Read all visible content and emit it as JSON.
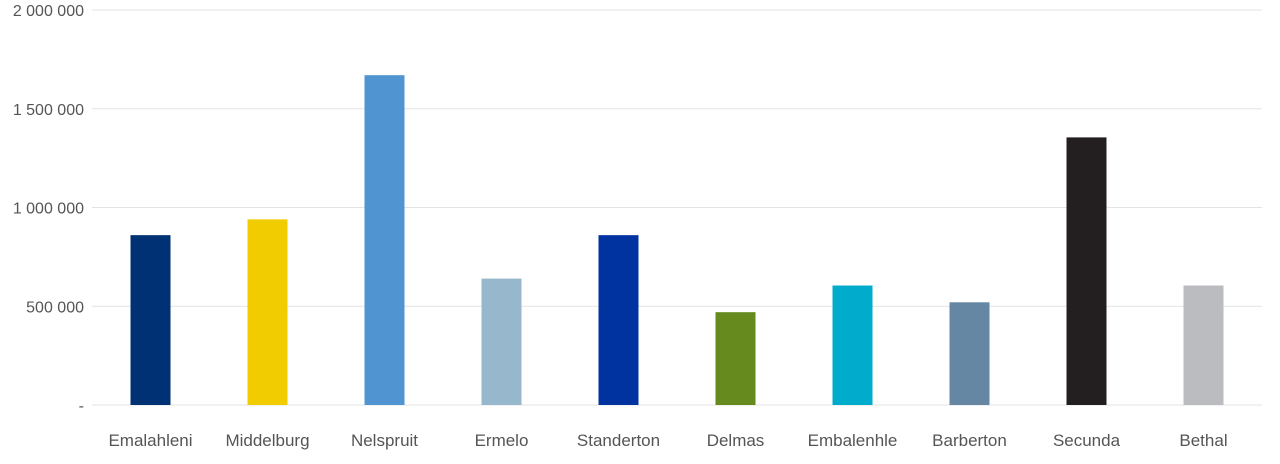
{
  "chart_data": {
    "type": "bar",
    "title": "",
    "xlabel": "",
    "ylabel": "",
    "categories": [
      "Emalahleni",
      "Middelburg",
      "Nelspruit",
      "Ermelo",
      "Standerton",
      "Delmas",
      "Embalenhle",
      "Barberton",
      "Secunda",
      "Bethal"
    ],
    "values": [
      860000,
      940000,
      1670000,
      640000,
      860000,
      470000,
      605000,
      520000,
      1355000,
      605000
    ],
    "colors": [
      "#003174",
      "#f0cc00",
      "#5095d2",
      "#97b8cc",
      "#0033a0",
      "#668a1e",
      "#00abcc",
      "#6687a3",
      "#231f20",
      "#bbbcc0"
    ],
    "ylim": [
      0,
      2000000
    ],
    "yticks": [
      {
        "value": 0,
        "label": "-"
      },
      {
        "value": 500000,
        "label": "500 000"
      },
      {
        "value": 1000000,
        "label": "1 000 000"
      },
      {
        "value": 1500000,
        "label": "1 500 000"
      },
      {
        "value": 2000000,
        "label": "2 000 000"
      }
    ],
    "grid": true,
    "legend": "none"
  }
}
